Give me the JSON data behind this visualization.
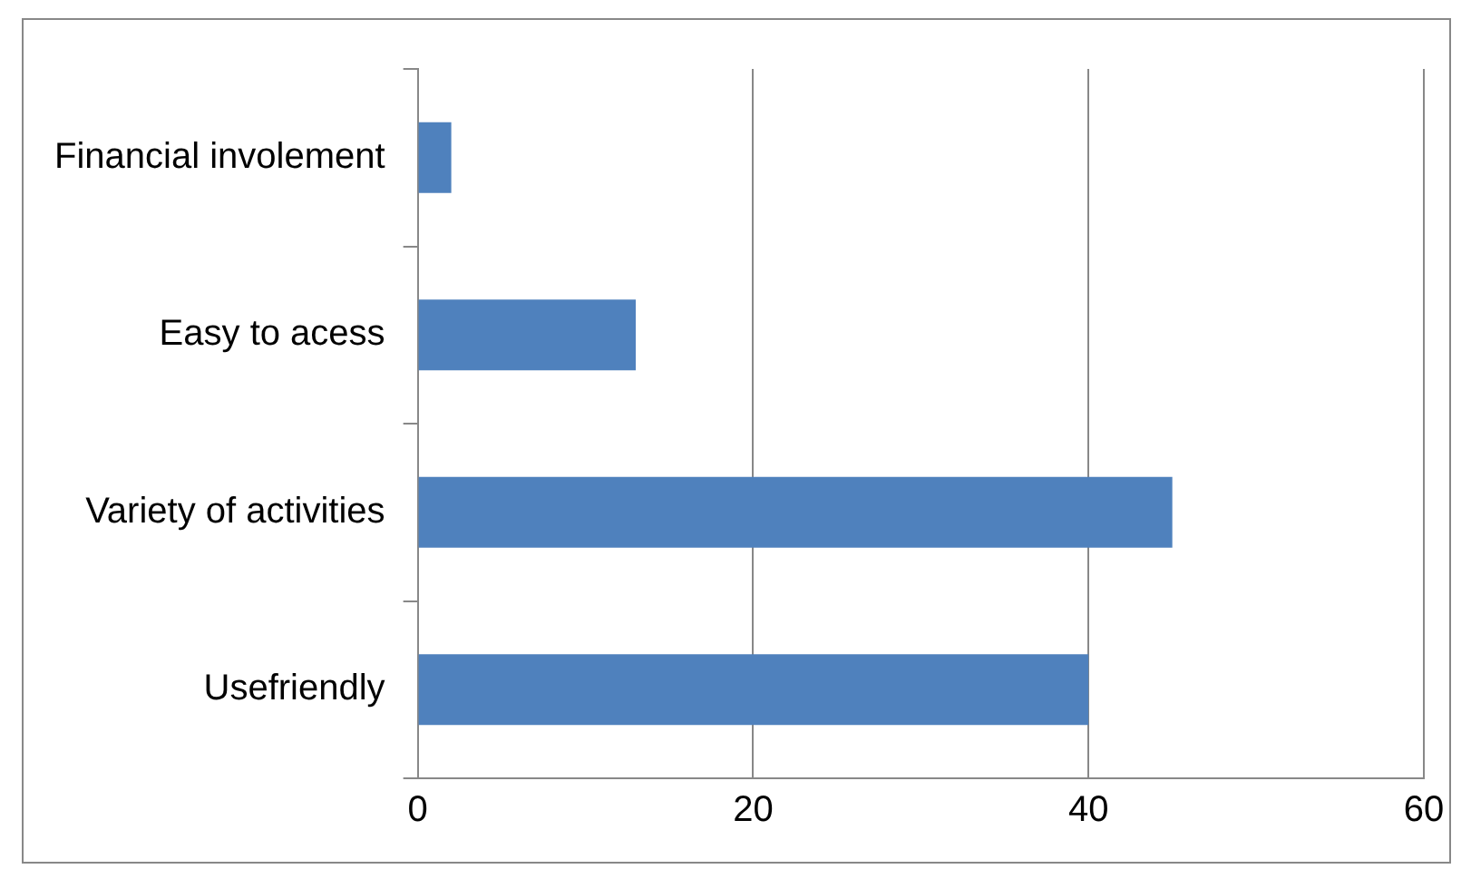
{
  "chart_data": {
    "type": "bar",
    "orientation": "horizontal",
    "categories": [
      "Financial involement",
      "Easy to acess",
      "Variety of activities",
      "Usefriendly"
    ],
    "values": [
      2,
      13,
      45,
      40
    ],
    "color": "#4f81bd",
    "xlim": [
      0,
      60
    ],
    "xticks": [
      0,
      20,
      40,
      60
    ],
    "grid": "x",
    "legend": false
  }
}
